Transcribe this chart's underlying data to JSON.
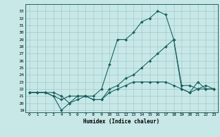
{
  "xlabel": "Humidex (Indice chaleur)",
  "background_color": "#c8e8e8",
  "grid_color": "#a0c8c8",
  "line_color": "#1a6060",
  "xlim": [
    -0.5,
    23.5
  ],
  "ylim": [
    18.7,
    34.0
  ],
  "yticks": [
    19,
    20,
    21,
    22,
    23,
    24,
    25,
    26,
    27,
    28,
    29,
    30,
    31,
    32,
    33
  ],
  "xticks": [
    0,
    1,
    2,
    3,
    4,
    5,
    6,
    7,
    8,
    9,
    10,
    11,
    12,
    13,
    14,
    15,
    16,
    17,
    18,
    19,
    20,
    21,
    22,
    23
  ],
  "series": [
    {
      "x": [
        0,
        1,
        2,
        3,
        4,
        5,
        6,
        7,
        8,
        9,
        10,
        11,
        12,
        13,
        14,
        15,
        16,
        17,
        18,
        19,
        20,
        21,
        22,
        23
      ],
      "y": [
        21.5,
        21.5,
        21.5,
        21.0,
        20.5,
        21.0,
        21.0,
        21.0,
        21.0,
        22.0,
        25.5,
        29.0,
        29.0,
        30.0,
        31.5,
        32.0,
        33.0,
        32.5,
        29.0,
        22.5,
        22.5,
        22.0,
        22.0,
        22.0
      ]
    },
    {
      "x": [
        0,
        1,
        2,
        3,
        4,
        5,
        6,
        7,
        8,
        9,
        10,
        11,
        12,
        13,
        14,
        15,
        16,
        17,
        18,
        19,
        20,
        21,
        22,
        23
      ],
      "y": [
        21.5,
        21.5,
        21.5,
        21.5,
        21.0,
        20.0,
        20.5,
        21.0,
        20.5,
        20.5,
        22.0,
        22.5,
        23.5,
        24.0,
        25.0,
        26.0,
        27.0,
        28.0,
        29.0,
        22.0,
        21.5,
        22.0,
        22.5,
        22.0
      ]
    },
    {
      "x": [
        0,
        1,
        2,
        3,
        4,
        5,
        6,
        7,
        8,
        9,
        10,
        11,
        12,
        13,
        14,
        15,
        16,
        17,
        18,
        19,
        20,
        21,
        22,
        23
      ],
      "y": [
        21.5,
        21.5,
        21.5,
        21.0,
        19.0,
        20.0,
        21.0,
        21.0,
        20.5,
        20.5,
        21.5,
        22.0,
        22.5,
        23.0,
        23.0,
        23.0,
        23.0,
        23.0,
        22.5,
        22.0,
        21.5,
        23.0,
        22.0,
        22.0
      ]
    }
  ]
}
